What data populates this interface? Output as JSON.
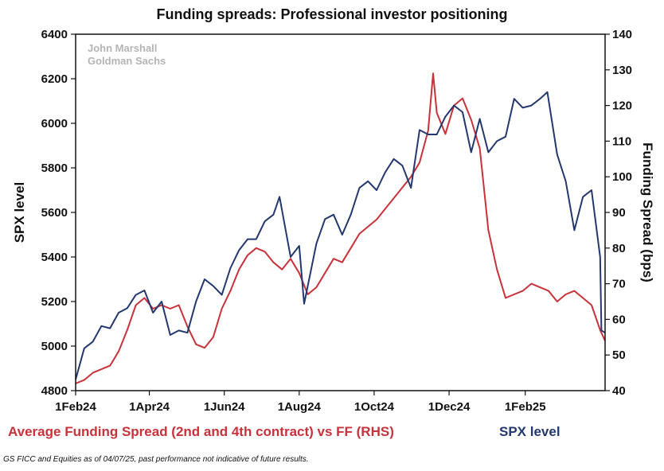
{
  "chart_data": {
    "type": "line",
    "title": "Funding spreads: Professional investor positioning",
    "watermark": [
      "John Marshall",
      "Goldman Sachs"
    ],
    "ylabel_left": "SPX level",
    "ylabel_right": "Funding Spread (bps)",
    "ylim_left": [
      4800,
      6400
    ],
    "yticks_left": [
      4800,
      5000,
      5200,
      5400,
      5600,
      5800,
      6000,
      6200,
      6400
    ],
    "ylim_right": [
      40,
      140
    ],
    "yticks_right": [
      40,
      50,
      60,
      70,
      80,
      90,
      100,
      110,
      120,
      130,
      140
    ],
    "xlim": [
      "2024-02-01",
      "2025-04-07"
    ],
    "x_ticks": [
      {
        "label": "1Feb24",
        "date": "2024-02-01"
      },
      {
        "label": "1Apr24",
        "date": "2024-04-01"
      },
      {
        "label": "1Jun24",
        "date": "2024-06-01"
      },
      {
        "label": "1Aug24",
        "date": "2024-08-01"
      },
      {
        "label": "1Oct24",
        "date": "2024-10-01"
      },
      {
        "label": "1Dec24",
        "date": "2024-12-01"
      },
      {
        "label": "1Feb25",
        "date": "2025-02-01"
      }
    ],
    "grid": false,
    "series": [
      {
        "name": "Average Funding Spread (2nd and 4th contract) vs FF (RHS)",
        "axis": "right",
        "color": "#c8323a",
        "points": [
          [
            "2024-02-01",
            42
          ],
          [
            "2024-02-08",
            43
          ],
          [
            "2024-02-15",
            45
          ],
          [
            "2024-02-22",
            46
          ],
          [
            "2024-02-29",
            47
          ],
          [
            "2024-03-07",
            51
          ],
          [
            "2024-03-14",
            57
          ],
          [
            "2024-03-21",
            64
          ],
          [
            "2024-03-28",
            66
          ],
          [
            "2024-04-04",
            63
          ],
          [
            "2024-04-11",
            64
          ],
          [
            "2024-04-18",
            63
          ],
          [
            "2024-04-25",
            64
          ],
          [
            "2024-05-02",
            58
          ],
          [
            "2024-05-09",
            53
          ],
          [
            "2024-05-16",
            52
          ],
          [
            "2024-05-23",
            55
          ],
          [
            "2024-05-30",
            63
          ],
          [
            "2024-06-06",
            68
          ],
          [
            "2024-06-13",
            74
          ],
          [
            "2024-06-20",
            78
          ],
          [
            "2024-06-27",
            80
          ],
          [
            "2024-07-04",
            79
          ],
          [
            "2024-07-11",
            76
          ],
          [
            "2024-07-18",
            74
          ],
          [
            "2024-07-25",
            77
          ],
          [
            "2024-08-01",
            73
          ],
          [
            "2024-08-08",
            67
          ],
          [
            "2024-08-15",
            69
          ],
          [
            "2024-08-22",
            73
          ],
          [
            "2024-08-29",
            77
          ],
          [
            "2024-09-05",
            76
          ],
          [
            "2024-09-12",
            80
          ],
          [
            "2024-09-19",
            84
          ],
          [
            "2024-09-26",
            86
          ],
          [
            "2024-10-03",
            88
          ],
          [
            "2024-10-10",
            91
          ],
          [
            "2024-10-17",
            94
          ],
          [
            "2024-10-24",
            97
          ],
          [
            "2024-10-31",
            100
          ],
          [
            "2024-11-07",
            104
          ],
          [
            "2024-11-14",
            113
          ],
          [
            "2024-11-18",
            129
          ],
          [
            "2024-11-21",
            118
          ],
          [
            "2024-11-28",
            112
          ],
          [
            "2024-12-05",
            120
          ],
          [
            "2024-12-12",
            122
          ],
          [
            "2024-12-19",
            116
          ],
          [
            "2024-12-26",
            108
          ],
          [
            "2025-01-02",
            85
          ],
          [
            "2025-01-09",
            74
          ],
          [
            "2025-01-16",
            66
          ],
          [
            "2025-01-23",
            67
          ],
          [
            "2025-01-30",
            68
          ],
          [
            "2025-02-06",
            70
          ],
          [
            "2025-02-13",
            69
          ],
          [
            "2025-02-20",
            68
          ],
          [
            "2025-02-27",
            65
          ],
          [
            "2025-03-06",
            67
          ],
          [
            "2025-03-13",
            68
          ],
          [
            "2025-03-20",
            66
          ],
          [
            "2025-03-27",
            64
          ],
          [
            "2025-04-03",
            57
          ],
          [
            "2025-04-07",
            54
          ]
        ]
      },
      {
        "name": "SPX level",
        "axis": "left",
        "color": "#24386f",
        "points": [
          [
            "2024-02-01",
            4850
          ],
          [
            "2024-02-08",
            4990
          ],
          [
            "2024-02-15",
            5020
          ],
          [
            "2024-02-22",
            5090
          ],
          [
            "2024-02-29",
            5080
          ],
          [
            "2024-03-07",
            5150
          ],
          [
            "2024-03-14",
            5170
          ],
          [
            "2024-03-21",
            5230
          ],
          [
            "2024-03-28",
            5250
          ],
          [
            "2024-04-04",
            5150
          ],
          [
            "2024-04-11",
            5200
          ],
          [
            "2024-04-18",
            5050
          ],
          [
            "2024-04-25",
            5070
          ],
          [
            "2024-05-02",
            5060
          ],
          [
            "2024-05-09",
            5200
          ],
          [
            "2024-05-16",
            5300
          ],
          [
            "2024-05-23",
            5270
          ],
          [
            "2024-05-30",
            5230
          ],
          [
            "2024-06-06",
            5350
          ],
          [
            "2024-06-13",
            5430
          ],
          [
            "2024-06-20",
            5480
          ],
          [
            "2024-06-27",
            5480
          ],
          [
            "2024-07-04",
            5560
          ],
          [
            "2024-07-11",
            5590
          ],
          [
            "2024-07-16",
            5670
          ],
          [
            "2024-07-25",
            5400
          ],
          [
            "2024-08-01",
            5450
          ],
          [
            "2024-08-05",
            5190
          ],
          [
            "2024-08-15",
            5460
          ],
          [
            "2024-08-22",
            5570
          ],
          [
            "2024-08-29",
            5590
          ],
          [
            "2024-09-05",
            5500
          ],
          [
            "2024-09-12",
            5590
          ],
          [
            "2024-09-19",
            5710
          ],
          [
            "2024-09-26",
            5740
          ],
          [
            "2024-10-03",
            5700
          ],
          [
            "2024-10-10",
            5780
          ],
          [
            "2024-10-17",
            5840
          ],
          [
            "2024-10-24",
            5810
          ],
          [
            "2024-10-31",
            5710
          ],
          [
            "2024-11-07",
            5970
          ],
          [
            "2024-11-14",
            5950
          ],
          [
            "2024-11-21",
            5950
          ],
          [
            "2024-11-28",
            6030
          ],
          [
            "2024-12-05",
            6080
          ],
          [
            "2024-12-12",
            6050
          ],
          [
            "2024-12-19",
            5870
          ],
          [
            "2024-12-26",
            6020
          ],
          [
            "2025-01-02",
            5870
          ],
          [
            "2025-01-09",
            5920
          ],
          [
            "2025-01-16",
            5940
          ],
          [
            "2025-01-23",
            6110
          ],
          [
            "2025-01-30",
            6070
          ],
          [
            "2025-02-06",
            6080
          ],
          [
            "2025-02-13",
            6110
          ],
          [
            "2025-02-19",
            6140
          ],
          [
            "2025-02-27",
            5860
          ],
          [
            "2025-03-06",
            5740
          ],
          [
            "2025-03-13",
            5520
          ],
          [
            "2025-03-20",
            5670
          ],
          [
            "2025-03-27",
            5700
          ],
          [
            "2025-04-03",
            5400
          ],
          [
            "2025-04-04",
            5070
          ],
          [
            "2025-04-07",
            5060
          ]
        ]
      }
    ]
  },
  "footnote": "GS FICC and Equities as of 04/07/25, past performance not indicative of future results."
}
